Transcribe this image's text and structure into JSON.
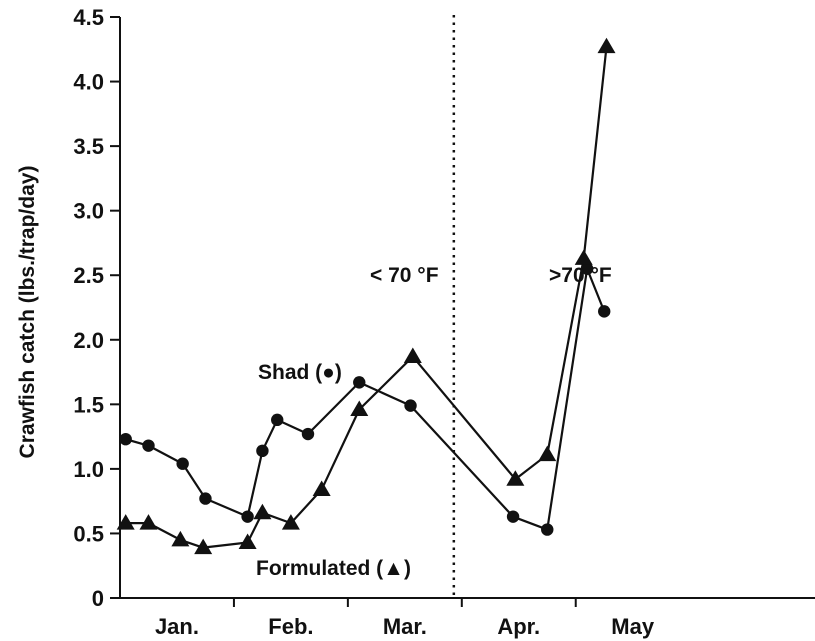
{
  "chart_data": {
    "type": "line",
    "title": "",
    "xlabel": "",
    "ylabel": "Crawfish catch (lbs./trap/day)",
    "ylim": [
      0,
      4.5
    ],
    "yticks": [
      "0",
      "0.5",
      "1.0",
      "1.5",
      "2.0",
      "2.5",
      "3.0",
      "3.5",
      "4.0",
      "4.5"
    ],
    "xlim": [
      0,
      6.1
    ],
    "months": [
      {
        "label": "Jan.",
        "center": 0.5
      },
      {
        "label": "Feb.",
        "center": 1.5
      },
      {
        "label": "Mar.",
        "center": 2.5
      },
      {
        "label": "Apr.",
        "center": 3.5
      },
      {
        "label": "May",
        "center": 4.5
      }
    ],
    "month_boundaries": [
      1,
      2,
      3,
      4
    ],
    "grid": false,
    "threshold": {
      "x": 2.93,
      "style": "dotted"
    },
    "annotations": [
      "< 70 °F",
      ">70 °F",
      "Shad (●)",
      "Formulated (▲)"
    ],
    "series": [
      {
        "name": "Shad",
        "marker": "circle",
        "points": [
          [
            0.05,
            1.23
          ],
          [
            0.25,
            1.18
          ],
          [
            0.55,
            1.04
          ],
          [
            0.75,
            0.77
          ],
          [
            1.12,
            0.63
          ],
          [
            1.25,
            1.14
          ],
          [
            1.38,
            1.38
          ],
          [
            1.65,
            1.27
          ],
          [
            2.1,
            1.67
          ],
          [
            2.55,
            1.49
          ],
          [
            3.45,
            0.63
          ],
          [
            3.75,
            0.53
          ],
          [
            4.1,
            2.55
          ],
          [
            4.25,
            2.22
          ]
        ]
      },
      {
        "name": "Formulated",
        "marker": "triangle",
        "points": [
          [
            0.05,
            0.58
          ],
          [
            0.25,
            0.58
          ],
          [
            0.53,
            0.45
          ],
          [
            0.73,
            0.39
          ],
          [
            1.12,
            0.43
          ],
          [
            1.25,
            0.66
          ],
          [
            1.5,
            0.58
          ],
          [
            1.77,
            0.84
          ],
          [
            2.1,
            1.46
          ],
          [
            2.57,
            1.87
          ],
          [
            3.47,
            0.92
          ],
          [
            3.75,
            1.11
          ],
          [
            4.07,
            2.63
          ],
          [
            4.27,
            4.27
          ]
        ]
      }
    ]
  }
}
